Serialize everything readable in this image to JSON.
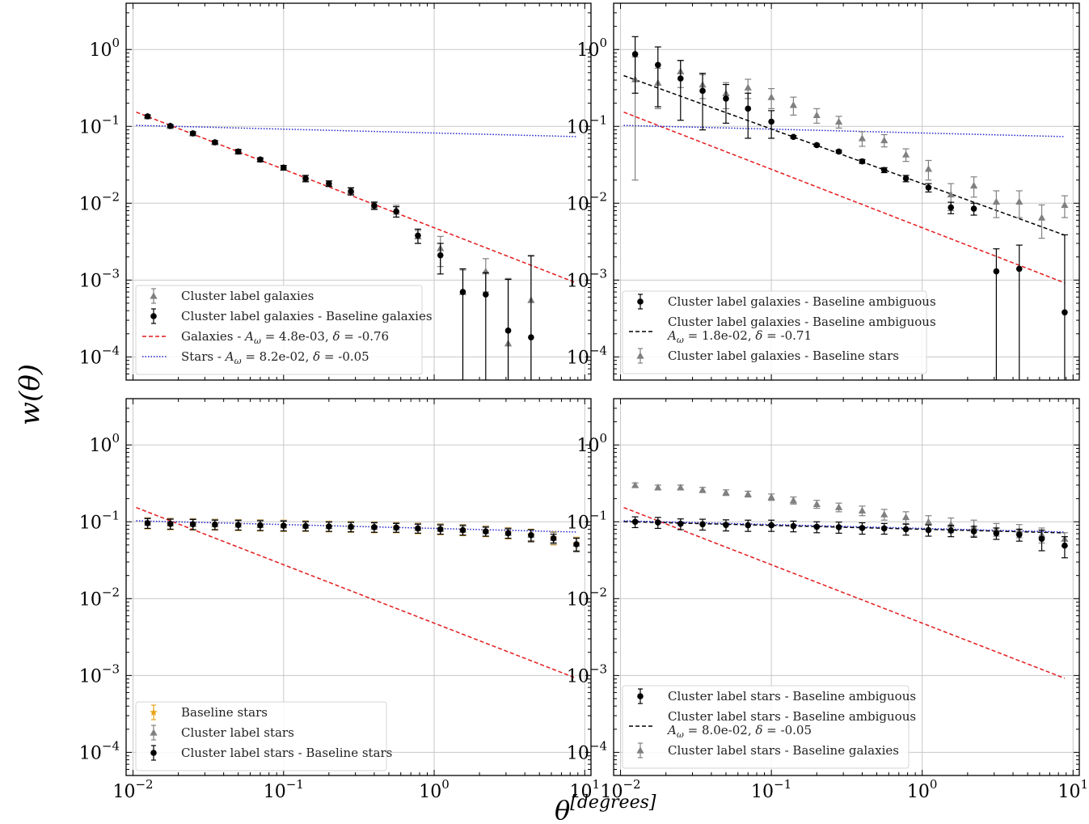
{
  "figure": {
    "ylabel": "w(θ)",
    "xlabel": "θ",
    "xlabel_sup": "[degrees]"
  },
  "chart_data": [
    {
      "type": "scatter",
      "xscale": "log",
      "yscale": "log",
      "xlim": [
        0.009,
        11
      ],
      "ylim": [
        5e-05,
        4
      ],
      "grid": true,
      "legend_loc": "lower-left",
      "xticks": [
        0.01,
        0.1,
        1,
        10
      ],
      "yticks": [
        0.0001,
        0.001,
        0.01,
        0.1,
        1
      ],
      "series": [
        {
          "name": "Cluster label galaxies",
          "style": "triangle",
          "color": "#808080",
          "x": [
            0.0125,
            0.0177,
            0.025,
            0.035,
            0.05,
            0.07,
            0.1,
            0.14,
            0.2,
            0.28,
            0.4,
            0.56,
            0.78,
            1.1,
            1.55,
            2.2,
            3.1,
            4.4
          ],
          "y": [
            0.135,
            0.101,
            0.081,
            0.062,
            0.047,
            0.037,
            0.029,
            0.021,
            0.018,
            0.0145,
            0.0094,
            0.0083,
            0.0037,
            0.0026,
            0.0007,
            0.0013,
            0.00015,
            0.00055
          ],
          "err": [
            0.006,
            0.004,
            0.004,
            0.003,
            0.003,
            0.002,
            0.002,
            0.002,
            0.0015,
            0.0015,
            0.001,
            0.0011,
            0.0007,
            0.0011,
            0.00065,
            0.0006,
            0.0009,
            0.0015
          ]
        },
        {
          "name": "Cluster label galaxies - Baseline galaxies",
          "style": "circle",
          "color": "#000000",
          "x": [
            0.0125,
            0.0177,
            0.025,
            0.035,
            0.05,
            0.07,
            0.1,
            0.14,
            0.2,
            0.28,
            0.4,
            0.56,
            0.78,
            1.1,
            1.55,
            2.2,
            3.1,
            4.4
          ],
          "y": [
            0.135,
            0.101,
            0.081,
            0.062,
            0.047,
            0.037,
            0.029,
            0.021,
            0.018,
            0.0143,
            0.0093,
            0.0078,
            0.0038,
            0.0021,
            0.0007,
            0.00065,
            0.00022,
            0.00018
          ],
          "err": [
            0.006,
            0.004,
            0.004,
            0.003,
            0.003,
            0.002,
            0.002,
            0.002,
            0.0015,
            0.0015,
            0.001,
            0.0012,
            0.0008,
            0.0009,
            0.0007,
            0.0006,
            0.0008,
            0.0019
          ]
        },
        {
          "name": "Galaxies - Aω = 4.8e-03, δ = -0.76",
          "style": "dashed-line",
          "color": "#e41a1c",
          "A": 0.0048,
          "delta": -0.76,
          "xrange": [
            0.0105,
            8.8
          ]
        },
        {
          "name": "Stars - Aω = 8.2e-02, δ = -0.05",
          "style": "dotted-line",
          "color": "#2020c8",
          "A": 0.082,
          "delta": -0.05,
          "xrange": [
            0.0105,
            8.8
          ]
        }
      ],
      "legend": [
        {
          "label": "Cluster label galaxies",
          "style": "triangle",
          "color": "#808080"
        },
        {
          "label": "Cluster label galaxies - Baseline galaxies",
          "style": "circle",
          "color": "#000000"
        },
        {
          "label": "Galaxies - Aω = 4.8e-03, δ = -0.76",
          "style": "dashed-line",
          "color": "#e41a1c",
          "param": true,
          "prefix": "Galaxies - ",
          "Aval": "4.8e-03",
          "dval": "-0.76"
        },
        {
          "label": "Stars - Aω = 8.2e-02, δ = -0.05",
          "style": "dotted-line",
          "color": "#2020c8",
          "param": true,
          "prefix": "Stars - ",
          "Aval": "8.2e-02",
          "dval": "-0.05"
        }
      ]
    },
    {
      "type": "scatter",
      "xscale": "log",
      "yscale": "log",
      "xlim": [
        0.009,
        11
      ],
      "ylim": [
        5e-05,
        4
      ],
      "grid": true,
      "legend_loc": "lower-left",
      "xticks": [
        0.01,
        0.1,
        1,
        10
      ],
      "yticks": [
        0.0001,
        0.001,
        0.01,
        0.1,
        1
      ],
      "series": [
        {
          "name": "Cluster label galaxies - Baseline stars",
          "style": "triangle",
          "color": "#808080",
          "x": [
            0.0125,
            0.0177,
            0.025,
            0.035,
            0.05,
            0.07,
            0.1,
            0.14,
            0.2,
            0.28,
            0.4,
            0.56,
            0.78,
            1.1,
            1.55,
            2.2,
            3.1,
            4.4,
            6.2,
            8.8
          ],
          "y": [
            0.41,
            0.37,
            0.52,
            0.35,
            0.27,
            0.32,
            0.24,
            0.19,
            0.14,
            0.115,
            0.07,
            0.066,
            0.043,
            0.028,
            0.013,
            0.017,
            0.0105,
            0.0105,
            0.0065,
            0.0095
          ],
          "err": [
            0.39,
            0.2,
            0.2,
            0.12,
            0.1,
            0.09,
            0.07,
            0.05,
            0.03,
            0.02,
            0.015,
            0.012,
            0.008,
            0.008,
            0.005,
            0.005,
            0.004,
            0.004,
            0.003,
            0.003
          ]
        },
        {
          "name": "Cluster label galaxies - Baseline ambiguous",
          "style": "circle",
          "color": "#000000",
          "x": [
            0.0125,
            0.0177,
            0.025,
            0.035,
            0.05,
            0.07,
            0.1,
            0.14,
            0.2,
            0.28,
            0.4,
            0.56,
            0.78,
            1.1,
            1.55,
            2.2,
            3.1,
            4.4,
            8.8
          ],
          "y": [
            0.87,
            0.63,
            0.42,
            0.29,
            0.23,
            0.17,
            0.115,
            0.073,
            0.057,
            0.047,
            0.035,
            0.027,
            0.021,
            0.016,
            0.0088,
            0.0085,
            0.0013,
            0.0014,
            0.00038
          ],
          "err": [
            0.6,
            0.45,
            0.3,
            0.2,
            0.12,
            0.1,
            0.045,
            0.003,
            0.002,
            0.002,
            0.002,
            0.002,
            0.002,
            0.002,
            0.0015,
            0.0015,
            0.00125,
            0.00145,
            0.0035
          ]
        },
        {
          "name": "Cluster label galaxies - Baseline ambiguous fit: Aω = 1.8e-02, δ = -0.71",
          "style": "dashed-line",
          "color": "#000000",
          "A": 0.018,
          "delta": -0.71,
          "xrange": [
            0.0105,
            8.8
          ]
        },
        {
          "name": "Galaxies",
          "style": "dashed-line",
          "color": "#e41a1c",
          "A": 0.0048,
          "delta": -0.76,
          "xrange": [
            0.0105,
            8.8
          ]
        },
        {
          "name": "Stars",
          "style": "dotted-line",
          "color": "#2020c8",
          "A": 0.082,
          "delta": -0.05,
          "xrange": [
            0.0105,
            8.8
          ]
        }
      ],
      "legend": [
        {
          "label": "Cluster label galaxies - Baseline ambiguous",
          "style": "circle",
          "color": "#000000"
        },
        {
          "label": "Cluster label galaxies - Baseline ambiguous",
          "style": "dashed-line",
          "color": "#000000",
          "param": true,
          "twoline": true,
          "Aval": "1.8e-02",
          "dval": "-0.71"
        },
        {
          "label": "Cluster label galaxies - Baseline stars",
          "style": "triangle",
          "color": "#808080"
        }
      ]
    },
    {
      "type": "scatter",
      "xscale": "log",
      "yscale": "log",
      "xlim": [
        0.009,
        11
      ],
      "ylim": [
        5e-05,
        4
      ],
      "grid": true,
      "legend_loc": "lower-left",
      "xticks": [
        0.01,
        0.1,
        1,
        10
      ],
      "yticks": [
        0.0001,
        0.001,
        0.01,
        0.1,
        1
      ],
      "series": [
        {
          "name": "Baseline stars",
          "style": "star",
          "color": "#e8a317",
          "x": [
            0.0125,
            0.0177,
            0.025,
            0.035,
            0.05,
            0.07,
            0.1,
            0.14,
            0.2,
            0.28,
            0.4,
            0.56,
            0.78,
            1.1,
            1.55,
            2.2,
            3.1,
            4.4,
            6.2,
            8.8
          ],
          "y": [
            0.097,
            0.095,
            0.094,
            0.093,
            0.092,
            0.091,
            0.09,
            0.089,
            0.088,
            0.087,
            0.086,
            0.085,
            0.083,
            0.081,
            0.079,
            0.076,
            0.072,
            0.068,
            0.062,
            0.052
          ],
          "err": [
            0.016,
            0.016,
            0.016,
            0.015,
            0.015,
            0.015,
            0.015,
            0.014,
            0.014,
            0.014,
            0.014,
            0.013,
            0.013,
            0.013,
            0.013,
            0.012,
            0.012,
            0.012,
            0.012,
            0.011
          ]
        },
        {
          "name": "Cluster label stars",
          "style": "triangle",
          "color": "#808080",
          "x": [
            0.0125,
            0.0177,
            0.025,
            0.035,
            0.05,
            0.07,
            0.1,
            0.14,
            0.2,
            0.28,
            0.4,
            0.56,
            0.78,
            1.1,
            1.55,
            2.2,
            3.1,
            4.4,
            6.2,
            8.8
          ],
          "y": [
            0.097,
            0.095,
            0.094,
            0.093,
            0.092,
            0.091,
            0.09,
            0.089,
            0.088,
            0.087,
            0.086,
            0.085,
            0.083,
            0.081,
            0.079,
            0.076,
            0.072,
            0.068,
            0.062,
            0.052
          ],
          "err": [
            0.015,
            0.015,
            0.015,
            0.014,
            0.014,
            0.014,
            0.014,
            0.013,
            0.013,
            0.013,
            0.013,
            0.012,
            0.012,
            0.012,
            0.012,
            0.011,
            0.011,
            0.011,
            0.011,
            0.01
          ]
        },
        {
          "name": "Cluster label stars - Baseline stars",
          "style": "circle",
          "color": "#000000",
          "x": [
            0.0125,
            0.0177,
            0.025,
            0.035,
            0.05,
            0.07,
            0.1,
            0.14,
            0.2,
            0.28,
            0.4,
            0.56,
            0.78,
            1.1,
            1.55,
            2.2,
            3.1,
            4.4,
            6.2,
            8.8
          ],
          "y": [
            0.096,
            0.094,
            0.093,
            0.092,
            0.091,
            0.09,
            0.089,
            0.088,
            0.087,
            0.086,
            0.085,
            0.084,
            0.082,
            0.08,
            0.078,
            0.075,
            0.071,
            0.067,
            0.061,
            0.051
          ],
          "err": [
            0.014,
            0.014,
            0.014,
            0.013,
            0.013,
            0.013,
            0.013,
            0.012,
            0.012,
            0.012,
            0.012,
            0.011,
            0.011,
            0.011,
            0.011,
            0.01,
            0.01,
            0.012,
            0.008,
            0.01
          ]
        },
        {
          "name": "Galaxies",
          "style": "dashed-line",
          "color": "#e41a1c",
          "A": 0.0048,
          "delta": -0.76,
          "xrange": [
            0.0105,
            8.8
          ]
        },
        {
          "name": "Stars",
          "style": "dotted-line",
          "color": "#2020c8",
          "A": 0.082,
          "delta": -0.05,
          "xrange": [
            0.0105,
            8.8
          ]
        }
      ],
      "legend": [
        {
          "label": "Baseline stars",
          "style": "star",
          "color": "#e8a317"
        },
        {
          "label": "Cluster label stars",
          "style": "triangle",
          "color": "#808080"
        },
        {
          "label": "Cluster label stars - Baseline stars",
          "style": "circle",
          "color": "#000000"
        }
      ]
    },
    {
      "type": "scatter",
      "xscale": "log",
      "yscale": "log",
      "xlim": [
        0.009,
        11
      ],
      "ylim": [
        5e-05,
        4
      ],
      "grid": true,
      "legend_loc": "lower-left",
      "xticks": [
        0.01,
        0.1,
        1,
        10
      ],
      "yticks": [
        0.0001,
        0.001,
        0.01,
        0.1,
        1
      ],
      "series": [
        {
          "name": "Cluster label stars - Baseline galaxies",
          "style": "triangle",
          "color": "#808080",
          "x": [
            0.0125,
            0.0177,
            0.025,
            0.035,
            0.05,
            0.07,
            0.1,
            0.14,
            0.2,
            0.28,
            0.4,
            0.56,
            0.78,
            1.1,
            1.55,
            2.2,
            3.1,
            4.4,
            6.2,
            8.8
          ],
          "y": [
            0.3,
            0.28,
            0.28,
            0.26,
            0.24,
            0.23,
            0.21,
            0.19,
            0.17,
            0.155,
            0.14,
            0.125,
            0.115,
            0.1,
            0.092,
            0.085,
            0.08,
            0.077,
            0.068,
            0.06
          ],
          "err": [
            0.02,
            0.02,
            0.02,
            0.02,
            0.02,
            0.02,
            0.02,
            0.02,
            0.02,
            0.02,
            0.02,
            0.02,
            0.02,
            0.02,
            0.02,
            0.02,
            0.015,
            0.015,
            0.015,
            0.012
          ]
        },
        {
          "name": "Cluster label stars - Baseline ambiguous",
          "style": "circle",
          "color": "#000000",
          "x": [
            0.0125,
            0.0177,
            0.025,
            0.035,
            0.05,
            0.07,
            0.1,
            0.14,
            0.2,
            0.28,
            0.4,
            0.56,
            0.78,
            1.1,
            1.55,
            2.2,
            3.1,
            4.4,
            6.2,
            8.8
          ],
          "y": [
            0.1,
            0.098,
            0.094,
            0.093,
            0.091,
            0.09,
            0.09,
            0.088,
            0.086,
            0.085,
            0.083,
            0.082,
            0.08,
            0.078,
            0.077,
            0.075,
            0.071,
            0.068,
            0.06,
            0.049
          ],
          "err": [
            0.016,
            0.016,
            0.015,
            0.015,
            0.015,
            0.015,
            0.015,
            0.014,
            0.014,
            0.014,
            0.014,
            0.013,
            0.013,
            0.013,
            0.013,
            0.012,
            0.012,
            0.012,
            0.018,
            0.015
          ]
        },
        {
          "name": "Cluster label stars - Baseline ambiguous fit: Aω = 8.0e-02, δ = -0.05",
          "style": "dashed-line",
          "color": "#000000",
          "A": 0.08,
          "delta": -0.05,
          "xrange": [
            0.0105,
            8.8
          ]
        },
        {
          "name": "Galaxies",
          "style": "dashed-line",
          "color": "#e41a1c",
          "A": 0.0048,
          "delta": -0.76,
          "xrange": [
            0.0105,
            8.8
          ]
        },
        {
          "name": "Stars",
          "style": "dotted-line",
          "color": "#2020c8",
          "A": 0.082,
          "delta": -0.05,
          "xrange": [
            0.0105,
            8.8
          ]
        }
      ],
      "legend": [
        {
          "label": "Cluster label stars - Baseline ambiguous",
          "style": "circle",
          "color": "#000000"
        },
        {
          "label": "Cluster label stars - Baseline ambiguous",
          "style": "dashed-line",
          "color": "#000000",
          "param": true,
          "twoline": true,
          "Aval": "8.0e-02",
          "dval": "-0.05"
        },
        {
          "label": "Cluster label stars - Baseline galaxies",
          "style": "triangle",
          "color": "#808080"
        }
      ]
    }
  ]
}
